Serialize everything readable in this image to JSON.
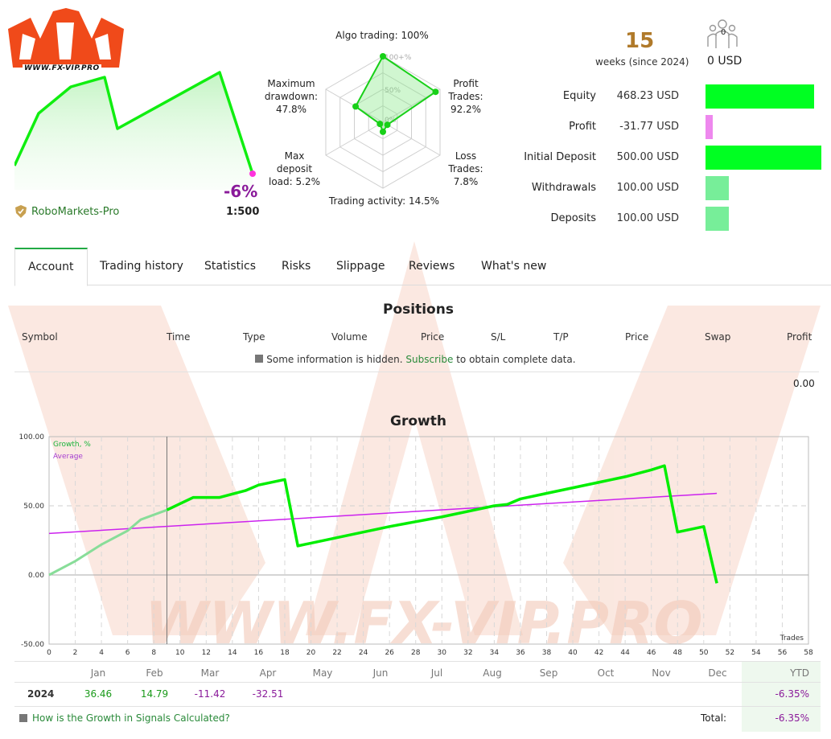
{
  "logo": {
    "url_text": "WWW.FX-VIP.PRO"
  },
  "summary": {
    "growth_pct": "-6%",
    "broker": "RoboMarkets-Pro",
    "leverage": "1:500",
    "weeks_value": "15",
    "weeks_label": "weeks (since 2024)",
    "subscribers_count": "0",
    "subscribers_usd": "0 USD"
  },
  "radar": {
    "labels": {
      "algo": "Algo trading: 100%",
      "profit": [
        "Profit",
        "Trades:",
        "92.2%"
      ],
      "loss": [
        "Loss",
        "Trades:",
        "7.8%"
      ],
      "activity": "Trading activity: 14.5%",
      "deposit_load": [
        "Max",
        "deposit",
        "load: 5.2%"
      ],
      "drawdown": [
        "Maximum",
        "drawdown:",
        "47.8%"
      ]
    },
    "ring_labels": [
      "100+%",
      "50%",
      "0%"
    ],
    "values": {
      "algo": 1.0,
      "profit": 0.922,
      "loss": 0.078,
      "activity": 0.145,
      "deposit_load": 0.052,
      "drawdown": 0.478
    }
  },
  "stats": [
    {
      "label": "Equity",
      "value": "468.23 USD",
      "bar_fraction": 0.936,
      "color": "#00ff22"
    },
    {
      "label": "Profit",
      "value": "-31.77 USD",
      "bar_fraction": 0.064,
      "color": "#ee88ee"
    },
    {
      "label": "Initial Deposit",
      "value": "500.00 USD",
      "bar_fraction": 1.0,
      "color": "#00ff22"
    },
    {
      "label": "Withdrawals",
      "value": "100.00 USD",
      "bar_fraction": 0.2,
      "color": "#77ee99"
    },
    {
      "label": "Deposits",
      "value": "100.00 USD",
      "bar_fraction": 0.2,
      "color": "#77ee99"
    }
  ],
  "tabs": [
    "Account",
    "Trading history",
    "Statistics",
    "Risks",
    "Slippage",
    "Reviews",
    "What's new"
  ],
  "positions": {
    "title": "Positions",
    "columns": [
      "Symbol",
      "Time",
      "Type",
      "Volume",
      "Price",
      "S/L",
      "T/P",
      "Price",
      "Swap",
      "Profit"
    ],
    "info_before": "Some information is hidden.",
    "info_link": "Subscribe",
    "info_after": "to obtain complete data.",
    "total_profit": "0.00"
  },
  "growth": {
    "title": "Growth",
    "legend_growth": "Growth, %",
    "legend_average": "Average",
    "x_label": "Trades"
  },
  "chart_data": {
    "type": "line",
    "title": "Growth",
    "xlabel": "Trades",
    "ylabel": "",
    "xlim": [
      0,
      58
    ],
    "ylim": [
      -50,
      100
    ],
    "x_ticks": [
      0,
      2,
      4,
      6,
      8,
      10,
      12,
      14,
      16,
      18,
      20,
      22,
      24,
      26,
      28,
      30,
      32,
      34,
      36,
      38,
      40,
      42,
      44,
      46,
      48,
      50,
      52,
      54,
      56,
      58
    ],
    "y_ticks": [
      "100.00",
      "50.00",
      "0.00",
      "-50.00"
    ],
    "series": [
      {
        "name": "Growth, %",
        "color": "#00ee00",
        "x": [
          0,
          2,
          4,
          6,
          7,
          9,
          11,
          12,
          13,
          15,
          16,
          18,
          19,
          22,
          26,
          30,
          34,
          35,
          36,
          38,
          40,
          42,
          44,
          46,
          47,
          48,
          50,
          51
        ],
        "y": [
          0,
          10,
          22,
          32,
          40,
          47,
          56,
          56,
          56,
          61,
          65,
          69,
          21,
          27,
          35,
          42,
          50,
          51,
          55,
          59,
          63,
          67,
          71,
          76,
          79,
          31,
          35,
          -6
        ]
      },
      {
        "name": "Average",
        "color": "#cc22ee",
        "x": [
          0,
          51
        ],
        "y": [
          30,
          59
        ]
      }
    ],
    "months_table": {
      "months": [
        "Jan",
        "Feb",
        "Mar",
        "Apr",
        "May",
        "Jun",
        "Jul",
        "Aug",
        "Sep",
        "Oct",
        "Nov",
        "Dec"
      ],
      "ytd_label": "YTD",
      "rows": [
        {
          "year": "2024",
          "values": [
            "36.46",
            "14.79",
            "-11.42",
            "-32.51",
            "",
            "",
            "",
            "",
            "",
            "",
            "",
            ""
          ],
          "ytd": "-6.35%"
        }
      ],
      "total_label": "Total:",
      "total": "-6.35%"
    }
  },
  "footer": {
    "question": "How is the Growth in Signals Calculated?"
  }
}
